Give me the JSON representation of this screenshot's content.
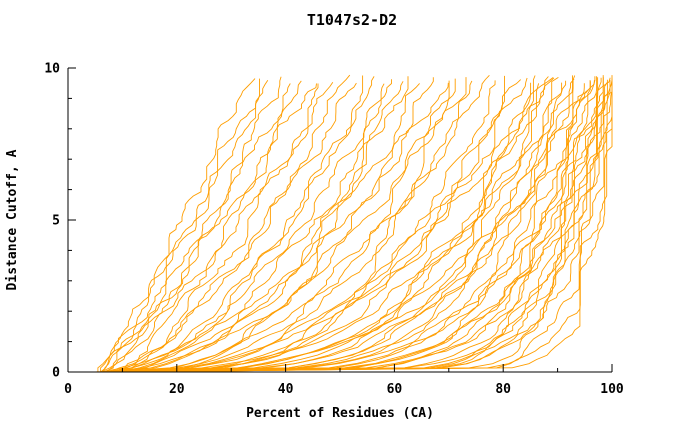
{
  "title": "T1047s2-D2",
  "chart_data": {
    "type": "line",
    "title": "T1047s2-D2",
    "xlabel": "Percent of Residues (CA)",
    "ylabel": "Distance Cutoff, A",
    "xlim": [
      0,
      100
    ],
    "ylim": [
      0,
      10
    ],
    "x_major_ticks": [
      0,
      20,
      40,
      60,
      80,
      100
    ],
    "x_tick_labels": [
      "0",
      "20",
      "40",
      "60",
      "80",
      "100"
    ],
    "x_minor_step": 10,
    "y_major_ticks": [
      0,
      5,
      10
    ],
    "y_tick_labels": [
      "0",
      "5",
      "10"
    ],
    "y_minor_step": 1,
    "grid": false,
    "legend": "none",
    "background": "#FFFFFF",
    "axis_color": "#000000",
    "line_color": "#FF9E00",
    "curve_top_y": 9.7,
    "curve_format": "[x_at_y0, x_at_top, shape_exponent] per model curve (estimated from plot)",
    "curves": [
      [
        6,
        33,
        0.9
      ],
      [
        5.5,
        35,
        0.8
      ],
      [
        6.5,
        37,
        0.95
      ],
      [
        7,
        39,
        0.75
      ],
      [
        6,
        41,
        0.85
      ],
      [
        8,
        43,
        0.7
      ],
      [
        6.5,
        45,
        0.9
      ],
      [
        7.5,
        47,
        0.65
      ],
      [
        6,
        49,
        0.8
      ],
      [
        7,
        51,
        0.6
      ],
      [
        8,
        53,
        0.7
      ],
      [
        6,
        55,
        0.5
      ],
      [
        9,
        57,
        0.62
      ],
      [
        7,
        59,
        0.55
      ],
      [
        8,
        61,
        0.45
      ],
      [
        10,
        63,
        0.6
      ],
      [
        7,
        65,
        0.5
      ],
      [
        9,
        67,
        0.42
      ],
      [
        8,
        69,
        0.55
      ],
      [
        10,
        71,
        0.4
      ],
      [
        7,
        73,
        0.5
      ],
      [
        9,
        75,
        0.38
      ],
      [
        8,
        77,
        0.45
      ],
      [
        11,
        79,
        0.35
      ],
      [
        8,
        81,
        0.3
      ],
      [
        9,
        83,
        0.34
      ],
      [
        10,
        85,
        0.28
      ],
      [
        8,
        86,
        0.25
      ],
      [
        11,
        87,
        0.3
      ],
      [
        9,
        88,
        0.22
      ],
      [
        10,
        89,
        0.27
      ],
      [
        8,
        90,
        0.2
      ],
      [
        11,
        91,
        0.24
      ],
      [
        9,
        92,
        0.18
      ],
      [
        10,
        93,
        0.22
      ],
      [
        8,
        94,
        0.16
      ],
      [
        9,
        95,
        0.14
      ],
      [
        12,
        95.5,
        0.2
      ],
      [
        10,
        96,
        0.12
      ],
      [
        8,
        96.5,
        0.16
      ],
      [
        11,
        97,
        0.1
      ],
      [
        9,
        97.5,
        0.14
      ],
      [
        10,
        98,
        0.09
      ],
      [
        12,
        98.5,
        0.12
      ],
      [
        9,
        99,
        0.08
      ],
      [
        10,
        99.3,
        0.11
      ],
      [
        11,
        99.6,
        0.07
      ],
      [
        9,
        100,
        0.1
      ],
      [
        10,
        100,
        0.06
      ],
      [
        12,
        100,
        0.13
      ],
      [
        8,
        100,
        0.05
      ],
      [
        6,
        58,
        0.3
      ],
      [
        7,
        70,
        0.25
      ],
      [
        7,
        84,
        0.4
      ],
      [
        6,
        92,
        0.35
      ],
      [
        7,
        96,
        0.3
      ],
      [
        6,
        88,
        0.4
      ],
      [
        5,
        98,
        0.2
      ],
      [
        6,
        99,
        0.15
      ],
      [
        7,
        100,
        0.18
      ],
      [
        5,
        94,
        0.25
      ]
    ]
  }
}
